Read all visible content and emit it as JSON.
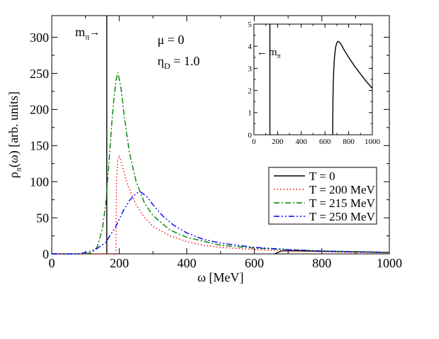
{
  "chart_data": [
    {
      "type": "line",
      "xlabel": "ω [MeV]",
      "ylabel_main": "ρ",
      "ylabel_sub": "π",
      "ylabel_rest": "(ω) [arb. units]",
      "xlim": [
        0,
        1000
      ],
      "ylim": [
        0,
        330
      ],
      "x_ticks": [
        0,
        200,
        400,
        600,
        800,
        1000
      ],
      "y_ticks": [
        0,
        50,
        100,
        150,
        200,
        250,
        300
      ],
      "annotations": {
        "mu": "μ = 0",
        "eta_main": "η",
        "eta_sub": "D",
        "eta_rest": " = 1.0",
        "mpi_main": "m",
        "mpi_sub": "π",
        "mpi_arrow": "→"
      },
      "legend_position": "lower-right",
      "series": [
        {
          "name": "T = 0",
          "color": "#000000",
          "dash": "solid",
          "vline_x": 163,
          "x": [
            660,
            680,
            700,
            750,
            800,
            850,
            900,
            950,
            1000
          ],
          "y": [
            0,
            4,
            4.3,
            4,
            3.6,
            3.2,
            2.8,
            2.5,
            2.2
          ]
        },
        {
          "name": "T = 200 MeV",
          "color": "#ff0000",
          "dash": "dotted",
          "x": [
            0,
            100,
            190,
            191,
            192,
            195,
            200,
            210,
            225,
            250,
            275,
            300,
            350,
            400,
            450,
            500,
            600,
            700,
            800,
            900,
            1000
          ],
          "y": [
            0,
            0,
            0,
            60,
            100,
            128,
            136,
            120,
            95,
            68,
            50,
            38,
            25,
            17,
            12,
            9,
            6,
            4,
            3,
            2,
            1.5
          ]
        },
        {
          "name": "T = 215 MeV",
          "color": "#008000",
          "dash": "dash-dot",
          "x": [
            0,
            100,
            120,
            135,
            150,
            160,
            170,
            180,
            190,
            196,
            205,
            215,
            230,
            250,
            275,
            300,
            350,
            400,
            500,
            600,
            700,
            800,
            900,
            1000
          ],
          "y": [
            0,
            0,
            2,
            10,
            35,
            70,
            130,
            195,
            240,
            251,
            230,
            190,
            140,
            100,
            70,
            53,
            33,
            23,
            12,
            8,
            6,
            4,
            3,
            2
          ]
        },
        {
          "name": "T = 250 MeV",
          "color": "#0000ff",
          "dash": "dash-dot-dot",
          "x": [
            0,
            80,
            100,
            130,
            160,
            190,
            210,
            230,
            250,
            262,
            280,
            300,
            330,
            360,
            400,
            450,
            500,
            600,
            700,
            800,
            900,
            1000
          ],
          "y": [
            0,
            0,
            2,
            6,
            16,
            38,
            58,
            74,
            84,
            86,
            80,
            68,
            52,
            40,
            29,
            20,
            15,
            9,
            6,
            4,
            3,
            2
          ]
        }
      ]
    },
    {
      "type": "line",
      "panel": "inset",
      "xlim": [
        0,
        1000
      ],
      "ylim": [
        0,
        5
      ],
      "x_ticks": [
        0,
        200,
        400,
        600,
        800,
        1000
      ],
      "y_ticks": [
        0,
        1,
        2,
        3,
        4,
        5
      ],
      "annotations": {
        "mpi_arrow": "←",
        "mpi_main": "m",
        "mpi_sub": "π"
      },
      "series": [
        {
          "name": "T = 0",
          "color": "#000000",
          "dash": "solid",
          "vline_x": 135,
          "x": [
            665,
            667,
            670,
            675,
            680,
            690,
            700,
            710,
            720,
            740,
            760,
            800,
            850,
            900,
            950,
            1000
          ],
          "y": [
            0,
            1.4,
            2.3,
            3.0,
            3.5,
            3.95,
            4.15,
            4.22,
            4.2,
            4.05,
            3.85,
            3.5,
            3.1,
            2.75,
            2.4,
            2.1
          ]
        }
      ]
    }
  ]
}
